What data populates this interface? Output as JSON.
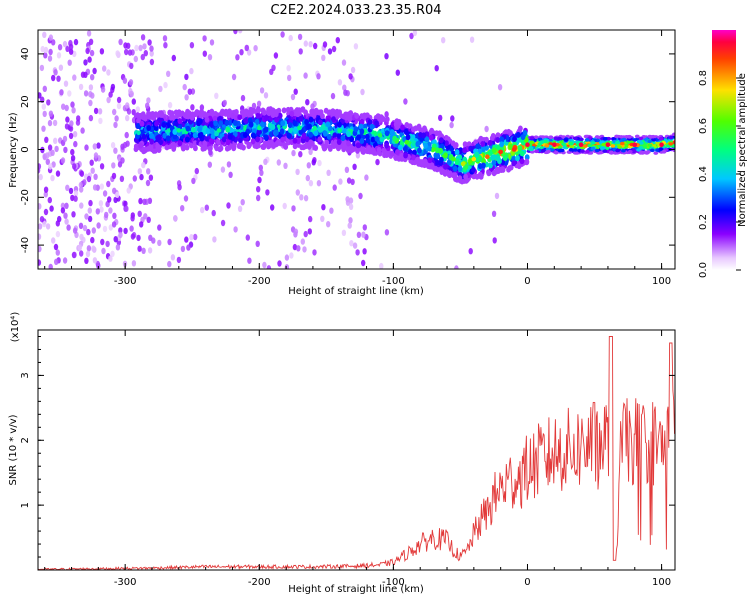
{
  "title": "C2E2.2024.033.23.35.R04",
  "colors": {
    "snr_line": "#e23a3a",
    "spectrogram_ridge": "#ff2a5a",
    "spectrogram_core": "#2ee8d0"
  },
  "chart_data": [
    {
      "type": "heatmap",
      "xlabel": "Height of straight line (km)",
      "ylabel": "Frequency (Hz)",
      "xlim": [
        -365,
        110
      ],
      "ylim": [
        -50,
        50
      ],
      "x_ticks": [
        -300,
        -200,
        -100,
        0,
        100
      ],
      "x_tick_labels": [
        "-300",
        "-200",
        "-100",
        "0",
        "100"
      ],
      "y_ticks": [
        -40,
        -20,
        0,
        20,
        40
      ],
      "y_tick_labels": [
        "-40",
        "-20",
        "0",
        "20",
        "40"
      ],
      "colorbar": {
        "label": "Normalized spectral amplitude",
        "range": [
          0,
          1
        ],
        "ticks": [
          0.0,
          0.2,
          0.4,
          0.6,
          0.8
        ],
        "tick_labels": [
          "0.0",
          "0.2",
          "0.4",
          "0.6",
          "0.8"
        ],
        "colormap": "gist_rainbow_r"
      },
      "dominant_frequency_track": {
        "x": [
          -290,
          -260,
          -230,
          -200,
          -170,
          -140,
          -110,
          -90,
          -70,
          -55,
          -48,
          -40,
          -30,
          -20,
          -10,
          0,
          20,
          40,
          60,
          80,
          100,
          110
        ],
        "y": [
          7,
          8,
          8,
          9,
          9,
          8,
          6,
          3,
          0,
          -4,
          -6,
          -4,
          -3,
          -1,
          0,
          2,
          2,
          2,
          2,
          2,
          2,
          3
        ],
        "amplitude": [
          0.45,
          0.5,
          0.5,
          0.5,
          0.5,
          0.5,
          0.55,
          0.6,
          0.6,
          0.6,
          0.7,
          0.75,
          0.85,
          0.9,
          0.9,
          0.95,
          0.95,
          0.95,
          0.95,
          0.95,
          0.95,
          0.9
        ]
      },
      "grid": false
    },
    {
      "type": "line",
      "xlabel": "Height of straight line (km)",
      "ylabel": "SNR (10 * v/v)",
      "y_scale_label": "(x10⁴)",
      "xlim": [
        -365,
        110
      ],
      "ylim": [
        0,
        3.7
      ],
      "x_ticks": [
        -300,
        -200,
        -100,
        0,
        100
      ],
      "x_tick_labels": [
        "-300",
        "-200",
        "-100",
        "0",
        "100"
      ],
      "y_ticks": [
        1,
        2,
        3
      ],
      "y_tick_labels": [
        "1",
        "2",
        "3"
      ],
      "series": [
        {
          "x": [
            -365,
            -320,
            -280,
            -240,
            -200,
            -160,
            -130,
            -110,
            -100,
            -90,
            -80,
            -70,
            -60,
            -55,
            -50,
            -45,
            -40,
            -35,
            -30,
            -25,
            -20,
            -15,
            -10,
            -5,
            0,
            10,
            20,
            30,
            40,
            50,
            55,
            60,
            63,
            66,
            70,
            75,
            80,
            85,
            90,
            95,
            100,
            105,
            108,
            110
          ],
          "y": [
            0.01,
            0.02,
            0.03,
            0.05,
            0.05,
            0.05,
            0.06,
            0.08,
            0.12,
            0.25,
            0.4,
            0.5,
            0.45,
            0.3,
            0.2,
            0.3,
            0.55,
            0.75,
            0.9,
            1.1,
            1.25,
            1.35,
            1.4,
            1.45,
            1.55,
            1.7,
            1.8,
            1.85,
            1.9,
            1.95,
            1.95,
            2.0,
            3.6,
            0.1,
            2.0,
            1.95,
            2.0,
            1.95,
            2.0,
            1.95,
            1.9,
            2.0,
            3.5,
            1.8
          ]
        }
      ],
      "grid": false
    }
  ]
}
